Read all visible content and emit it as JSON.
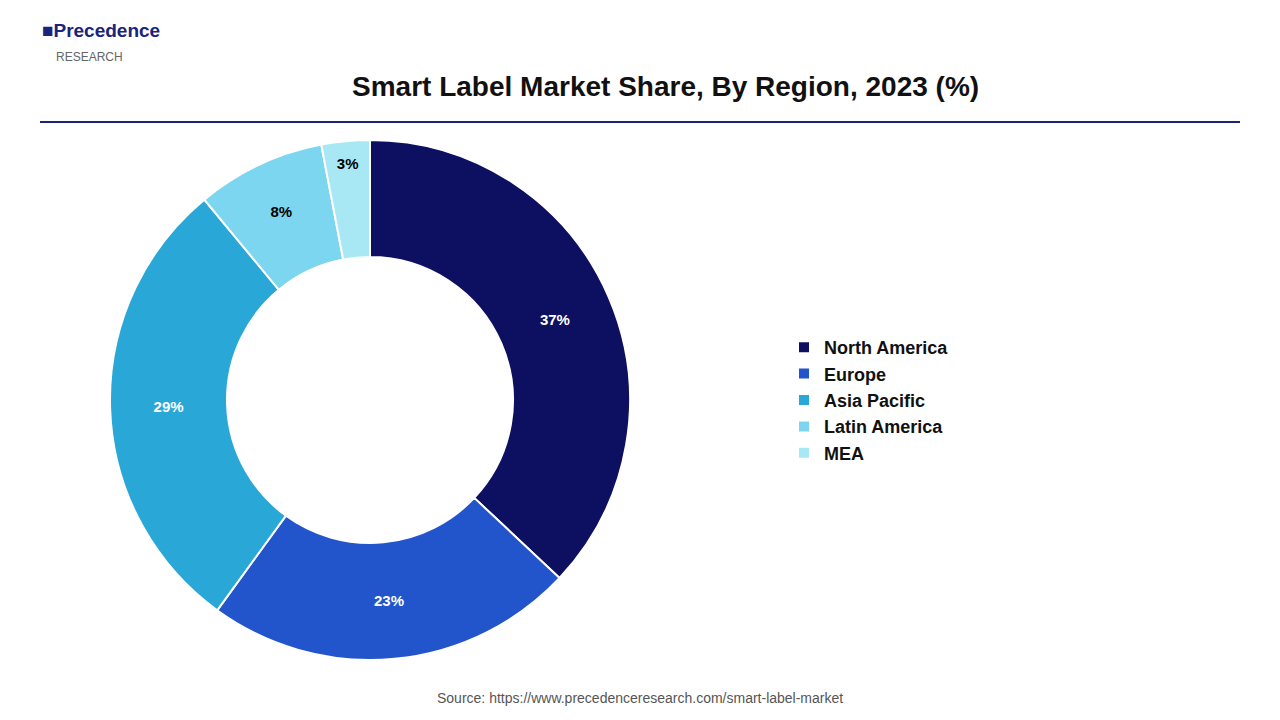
{
  "chart_data": {
    "type": "pie",
    "title": "Smart Label Market Share, By Region, 2023 (%)",
    "categories": [
      "North America",
      "Europe",
      "Asia Pacific",
      "Latin America",
      "MEA"
    ],
    "values": [
      37,
      23,
      29,
      8,
      3
    ],
    "value_labels": [
      "37%",
      "23%",
      "29%",
      "8%",
      "3%"
    ],
    "colors": [
      "#0d1060",
      "#2255cc",
      "#29a8d8",
      "#7dd6ef",
      "#a8e8f5"
    ],
    "data_labels": true,
    "legend": "right",
    "annotations": [
      "■Precedence",
      "RESEARCH",
      "Source: https://www.precedenceresearch.com/smart-label-market"
    ]
  }
}
